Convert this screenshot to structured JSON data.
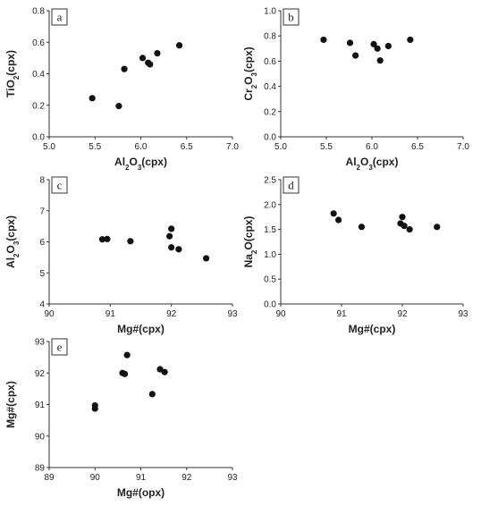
{
  "chart_data": [
    {
      "type": "scatter",
      "panel": "a",
      "xlabel": "Al2O3(cpx)",
      "xlabel_parts": [
        {
          "t": "Al"
        },
        {
          "t": "2",
          "sub": true
        },
        {
          "t": "O"
        },
        {
          "t": "3",
          "sub": true
        },
        {
          "t": "(cpx)"
        }
      ],
      "ylabel": "TiO2(cpx)",
      "ylabel_parts": [
        {
          "t": "TiO"
        },
        {
          "t": "2",
          "sub": true
        },
        {
          "t": "(cpx)"
        }
      ],
      "xlim": [
        5.0,
        7.0
      ],
      "ylim": [
        0.0,
        0.8
      ],
      "xticks": [
        "5.0",
        "5.5",
        "6.0",
        "6.5",
        "7.0"
      ],
      "yticks": [
        "0.0",
        "0.2",
        "0.4",
        "0.6",
        "0.8"
      ],
      "points": [
        {
          "x": 5.47,
          "y": 0.245
        },
        {
          "x": 5.76,
          "y": 0.195
        },
        {
          "x": 5.82,
          "y": 0.43
        },
        {
          "x": 6.02,
          "y": 0.5
        },
        {
          "x": 6.08,
          "y": 0.47
        },
        {
          "x": 6.1,
          "y": 0.46
        },
        {
          "x": 6.18,
          "y": 0.53
        },
        {
          "x": 6.42,
          "y": 0.58
        }
      ]
    },
    {
      "type": "scatter",
      "panel": "b",
      "xlabel": "Al2O3(cpx)",
      "xlabel_parts": [
        {
          "t": "Al"
        },
        {
          "t": "2",
          "sub": true
        },
        {
          "t": "O"
        },
        {
          "t": "3",
          "sub": true
        },
        {
          "t": "(cpx)"
        }
      ],
      "ylabel": "Cr2O3(cpx)",
      "ylabel_parts": [
        {
          "t": "Cr"
        },
        {
          "t": "2",
          "sub": true
        },
        {
          "t": "O"
        },
        {
          "t": "3",
          "sub": true
        },
        {
          "t": "(cpx)"
        }
      ],
      "xlim": [
        5.0,
        7.0
      ],
      "ylim": [
        0.0,
        1.0
      ],
      "xticks": [
        "5.0",
        "5.5",
        "6.0",
        "6.5",
        "7.0"
      ],
      "yticks": [
        "0.0",
        "0.2",
        "0.4",
        "0.6",
        "0.8",
        "1.0"
      ],
      "points": [
        {
          "x": 5.47,
          "y": 0.77
        },
        {
          "x": 5.76,
          "y": 0.745
        },
        {
          "x": 5.82,
          "y": 0.645
        },
        {
          "x": 6.02,
          "y": 0.735
        },
        {
          "x": 6.06,
          "y": 0.7
        },
        {
          "x": 6.09,
          "y": 0.605
        },
        {
          "x": 6.18,
          "y": 0.72
        },
        {
          "x": 6.42,
          "y": 0.77
        }
      ]
    },
    {
      "type": "scatter",
      "panel": "c",
      "xlabel": "Mg#(cpx)",
      "xlabel_parts": [
        {
          "t": "Mg#(cpx)"
        }
      ],
      "ylabel": "Al2O3(cpx)",
      "ylabel_parts": [
        {
          "t": "Al"
        },
        {
          "t": "2",
          "sub": true
        },
        {
          "t": "O"
        },
        {
          "t": "3",
          "sub": true
        },
        {
          "t": "(cpx)"
        }
      ],
      "xlim": [
        90,
        93
      ],
      "ylim": [
        4,
        8
      ],
      "xticks": [
        "90",
        "91",
        "92",
        "93"
      ],
      "yticks": [
        "4",
        "5",
        "6",
        "7",
        "8"
      ],
      "points": [
        {
          "x": 90.87,
          "y": 6.08
        },
        {
          "x": 90.95,
          "y": 6.09
        },
        {
          "x": 91.33,
          "y": 6.02
        },
        {
          "x": 91.97,
          "y": 6.18
        },
        {
          "x": 92.0,
          "y": 6.42
        },
        {
          "x": 92.0,
          "y": 5.82
        },
        {
          "x": 92.12,
          "y": 5.76
        },
        {
          "x": 92.57,
          "y": 5.47
        }
      ]
    },
    {
      "type": "scatter",
      "panel": "d",
      "xlabel": "Mg#(cpx)",
      "xlabel_parts": [
        {
          "t": "Mg#(cpx)"
        }
      ],
      "ylabel": "Na2O(cpx)",
      "ylabel_parts": [
        {
          "t": "Na"
        },
        {
          "t": "2",
          "sub": true
        },
        {
          "t": "O(cpx)"
        }
      ],
      "xlim": [
        90,
        93
      ],
      "ylim": [
        0.0,
        2.5
      ],
      "xticks": [
        "90",
        "91",
        "92",
        "93"
      ],
      "yticks": [
        "0.0",
        "0.5",
        "1.0",
        "1.5",
        "2.0",
        "2.5"
      ],
      "points": [
        {
          "x": 90.87,
          "y": 1.82
        },
        {
          "x": 90.95,
          "y": 1.69
        },
        {
          "x": 91.33,
          "y": 1.55
        },
        {
          "x": 91.97,
          "y": 1.62
        },
        {
          "x": 92.0,
          "y": 1.75
        },
        {
          "x": 92.03,
          "y": 1.57
        },
        {
          "x": 92.12,
          "y": 1.5
        },
        {
          "x": 92.57,
          "y": 1.55
        }
      ]
    },
    {
      "type": "scatter",
      "panel": "e",
      "xlabel": "Mg#(opx)",
      "xlabel_parts": [
        {
          "t": "Mg#(opx)"
        }
      ],
      "ylabel": "Mg#(cpx)",
      "ylabel_parts": [
        {
          "t": "Mg#(cpx)"
        }
      ],
      "xlim": [
        89,
        93
      ],
      "ylim": [
        89,
        93
      ],
      "xticks": [
        "89",
        "90",
        "91",
        "92",
        "93"
      ],
      "yticks": [
        "89",
        "90",
        "91",
        "92",
        "93"
      ],
      "points": [
        {
          "x": 90.0,
          "y": 90.97
        },
        {
          "x": 90.0,
          "y": 90.87
        },
        {
          "x": 90.6,
          "y": 92.0
        },
        {
          "x": 90.65,
          "y": 91.97
        },
        {
          "x": 90.7,
          "y": 92.57
        },
        {
          "x": 91.25,
          "y": 91.33
        },
        {
          "x": 91.42,
          "y": 92.12
        },
        {
          "x": 91.52,
          "y": 92.03
        }
      ]
    }
  ]
}
